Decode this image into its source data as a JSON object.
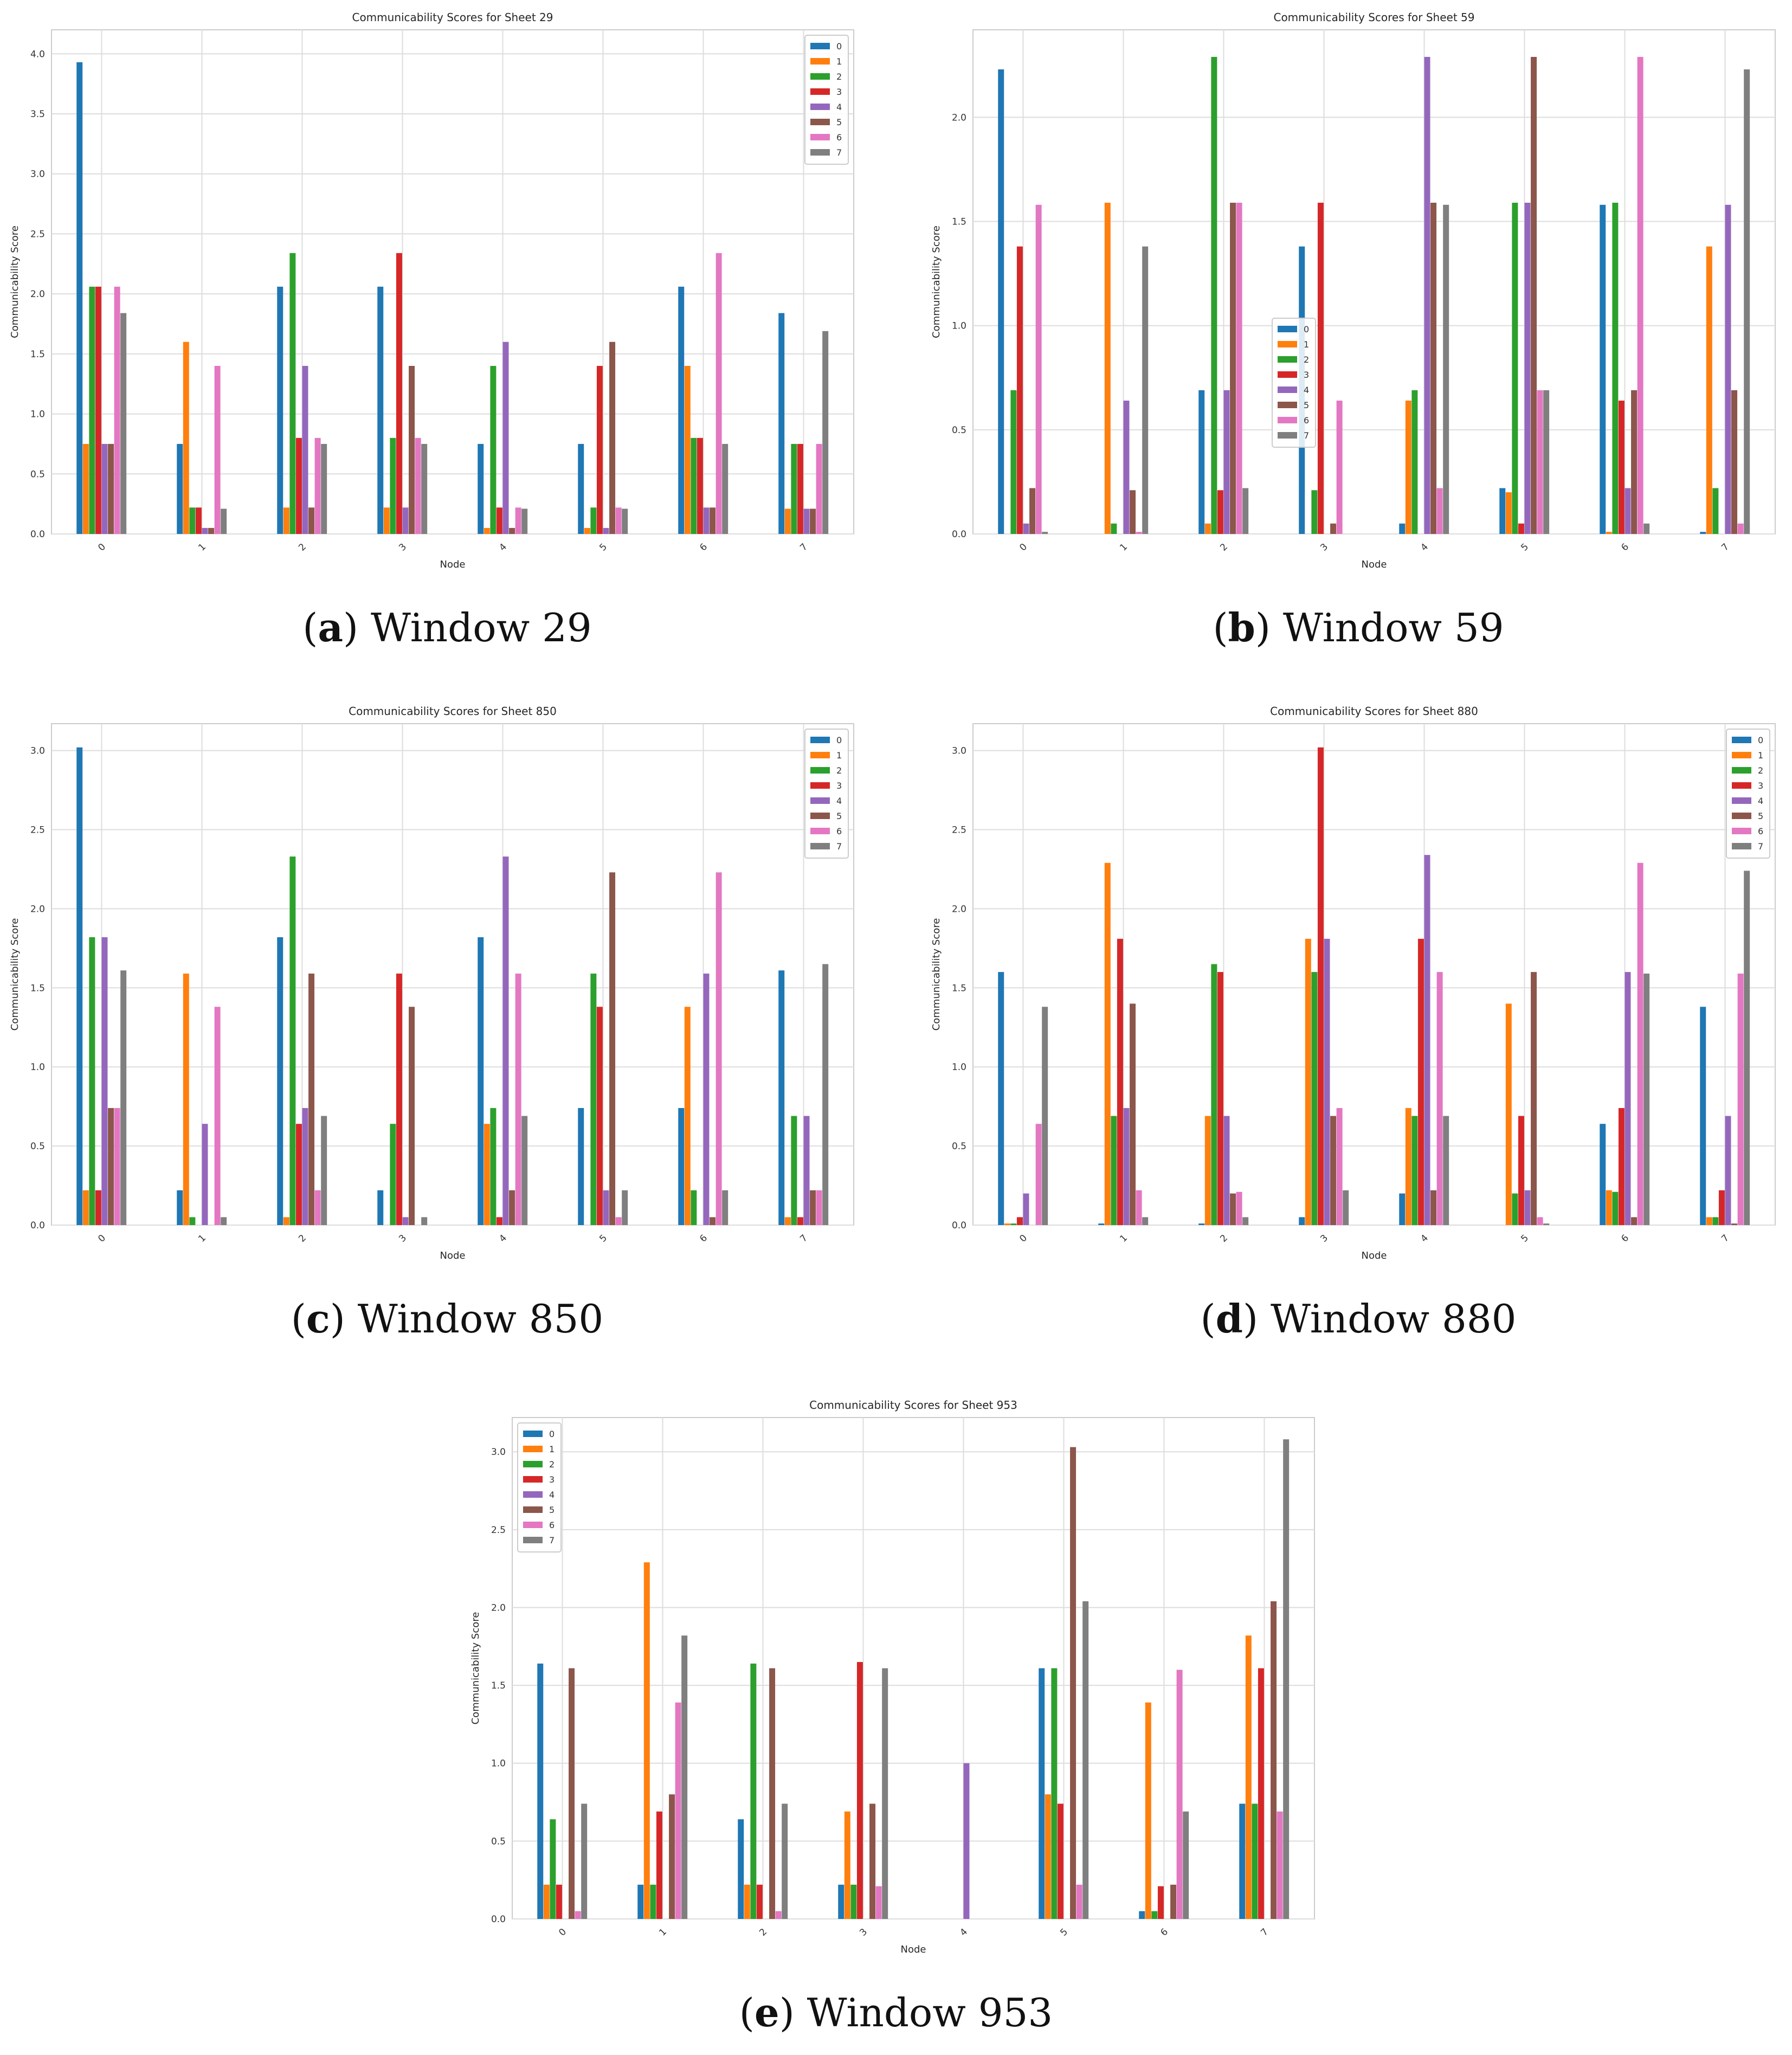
{
  "series_colors": [
    "#1f77b4",
    "#ff7f0e",
    "#2ca02c",
    "#d62728",
    "#9467bd",
    "#8c564b",
    "#e377c2",
    "#7f7f7f"
  ],
  "chart_data": [
    {
      "type": "bar",
      "title": "Communicability Scores for Sheet 29",
      "xlabel": "Node",
      "ylabel": "Communicability Score",
      "categories": [
        "0",
        "1",
        "2",
        "3",
        "4",
        "5",
        "6",
        "7"
      ],
      "ylim": [
        0,
        4.2
      ],
      "yticks": [
        "0.0",
        "0.5",
        "1.0",
        "1.5",
        "2.0",
        "2.5",
        "3.0",
        "3.5",
        "4.0"
      ],
      "legend_position": "top-right",
      "caption_letter": "a",
      "caption_text": " Window 29",
      "series": [
        {
          "name": "0",
          "values": [
            3.93,
            0.75,
            2.06,
            2.06,
            0.75,
            0.75,
            2.06,
            1.84
          ]
        },
        {
          "name": "1",
          "values": [
            0.75,
            1.6,
            0.22,
            0.22,
            0.05,
            0.05,
            1.4,
            0.21
          ]
        },
        {
          "name": "2",
          "values": [
            2.06,
            0.22,
            2.34,
            0.8,
            1.4,
            0.22,
            0.8,
            0.75
          ]
        },
        {
          "name": "3",
          "values": [
            2.06,
            0.22,
            0.8,
            2.34,
            0.22,
            1.4,
            0.8,
            0.75
          ]
        },
        {
          "name": "4",
          "values": [
            0.75,
            0.05,
            1.4,
            0.22,
            1.6,
            0.05,
            0.22,
            0.21
          ]
        },
        {
          "name": "5",
          "values": [
            0.75,
            0.05,
            0.22,
            1.4,
            0.05,
            1.6,
            0.22,
            0.21
          ]
        },
        {
          "name": "6",
          "values": [
            2.06,
            1.4,
            0.8,
            0.8,
            0.22,
            0.22,
            2.34,
            0.75
          ]
        },
        {
          "name": "7",
          "values": [
            1.84,
            0.21,
            0.75,
            0.75,
            0.21,
            0.21,
            0.75,
            1.69
          ]
        }
      ]
    },
    {
      "type": "bar",
      "title": "Communicability Scores for Sheet 59",
      "xlabel": "Node",
      "ylabel": "Communicability Score",
      "categories": [
        "0",
        "1",
        "2",
        "3",
        "4",
        "5",
        "6",
        "7"
      ],
      "ylim": [
        0,
        2.42
      ],
      "yticks": [
        "0.0",
        "0.5",
        "1.0",
        "1.5",
        "2.0"
      ],
      "legend_position": "center",
      "caption_letter": "b",
      "caption_text": " Window 59",
      "series": [
        {
          "name": "0",
          "values": [
            2.23,
            0.0,
            0.69,
            1.38,
            0.05,
            0.22,
            1.58,
            0.01
          ]
        },
        {
          "name": "1",
          "values": [
            0.0,
            1.59,
            0.05,
            0.0,
            0.64,
            0.2,
            0.01,
            1.38
          ]
        },
        {
          "name": "2",
          "values": [
            0.69,
            0.05,
            2.29,
            0.21,
            0.69,
            1.59,
            1.59,
            0.22
          ]
        },
        {
          "name": "3",
          "values": [
            1.38,
            0.0,
            0.21,
            1.59,
            0.0,
            0.05,
            0.64,
            0.0
          ]
        },
        {
          "name": "4",
          "values": [
            0.05,
            0.64,
            0.69,
            0.0,
            2.29,
            1.59,
            0.22,
            1.58
          ]
        },
        {
          "name": "5",
          "values": [
            0.22,
            0.21,
            1.59,
            0.05,
            1.59,
            2.29,
            0.69,
            0.69
          ]
        },
        {
          "name": "6",
          "values": [
            1.58,
            0.01,
            1.59,
            0.64,
            0.22,
            0.69,
            2.29,
            0.05
          ]
        },
        {
          "name": "7",
          "values": [
            0.01,
            1.38,
            0.22,
            0.0,
            1.58,
            0.69,
            0.05,
            2.23
          ]
        }
      ]
    },
    {
      "type": "bar",
      "title": "Communicability Scores for Sheet 850",
      "xlabel": "Node",
      "ylabel": "Communicability Score",
      "categories": [
        "0",
        "1",
        "2",
        "3",
        "4",
        "5",
        "6",
        "7"
      ],
      "ylim": [
        0,
        3.17
      ],
      "yticks": [
        "0.0",
        "0.5",
        "1.0",
        "1.5",
        "2.0",
        "2.5",
        "3.0"
      ],
      "legend_position": "top-right",
      "caption_letter": "c",
      "caption_text": " Window 850",
      "series": [
        {
          "name": "0",
          "values": [
            3.02,
            0.22,
            1.82,
            0.22,
            1.82,
            0.74,
            0.74,
            1.61
          ]
        },
        {
          "name": "1",
          "values": [
            0.22,
            1.59,
            0.05,
            0.0,
            0.64,
            0.0,
            1.38,
            0.05
          ]
        },
        {
          "name": "2",
          "values": [
            1.82,
            0.05,
            2.33,
            0.64,
            0.74,
            1.59,
            0.22,
            0.69
          ]
        },
        {
          "name": "3",
          "values": [
            0.22,
            0.0,
            0.64,
            1.59,
            0.05,
            1.38,
            0.0,
            0.05
          ]
        },
        {
          "name": "4",
          "values": [
            1.82,
            0.64,
            0.74,
            0.05,
            2.33,
            0.22,
            1.59,
            0.69
          ]
        },
        {
          "name": "5",
          "values": [
            0.74,
            0.0,
            1.59,
            1.38,
            0.22,
            2.23,
            0.05,
            0.22
          ]
        },
        {
          "name": "6",
          "values": [
            0.74,
            1.38,
            0.22,
            0.0,
            1.59,
            0.05,
            2.23,
            0.22
          ]
        },
        {
          "name": "7",
          "values": [
            1.61,
            0.05,
            0.69,
            0.05,
            0.69,
            0.22,
            0.22,
            1.65
          ]
        }
      ]
    },
    {
      "type": "bar",
      "title": "Communicability Scores for Sheet 880",
      "xlabel": "Node",
      "ylabel": "Communicability Score",
      "categories": [
        "0",
        "1",
        "2",
        "3",
        "4",
        "5",
        "6",
        "7"
      ],
      "ylim": [
        0,
        3.17
      ],
      "yticks": [
        "0.0",
        "0.5",
        "1.0",
        "1.5",
        "2.0",
        "2.5",
        "3.0"
      ],
      "legend_position": "top-right",
      "caption_letter": "d",
      "caption_text": " Window 880",
      "series": [
        {
          "name": "0",
          "values": [
            1.6,
            0.01,
            0.01,
            0.05,
            0.2,
            0.0,
            0.64,
            1.38
          ]
        },
        {
          "name": "1",
          "values": [
            0.01,
            2.29,
            0.69,
            1.81,
            0.74,
            1.4,
            0.22,
            0.05
          ]
        },
        {
          "name": "2",
          "values": [
            0.01,
            0.69,
            1.65,
            1.6,
            0.69,
            0.2,
            0.21,
            0.05
          ]
        },
        {
          "name": "3",
          "values": [
            0.05,
            1.81,
            1.6,
            3.02,
            1.81,
            0.69,
            0.74,
            0.22
          ]
        },
        {
          "name": "4",
          "values": [
            0.2,
            0.74,
            0.69,
            1.81,
            2.34,
            0.22,
            1.6,
            0.69
          ]
        },
        {
          "name": "5",
          "values": [
            0.0,
            1.4,
            0.2,
            0.69,
            0.22,
            1.6,
            0.05,
            0.01
          ]
        },
        {
          "name": "6",
          "values": [
            0.64,
            0.22,
            0.21,
            0.74,
            1.6,
            0.05,
            2.29,
            1.59
          ]
        },
        {
          "name": "7",
          "values": [
            1.38,
            0.05,
            0.05,
            0.22,
            0.69,
            0.01,
            1.59,
            2.24
          ]
        }
      ]
    },
    {
      "type": "bar",
      "title": "Communicability Scores for Sheet 953",
      "xlabel": "Node",
      "ylabel": "Communicability Score",
      "categories": [
        "0",
        "1",
        "2",
        "3",
        "4",
        "5",
        "6",
        "7"
      ],
      "ylim": [
        0,
        3.22
      ],
      "yticks": [
        "0.0",
        "0.5",
        "1.0",
        "1.5",
        "2.0",
        "2.5",
        "3.0"
      ],
      "legend_position": "top-left",
      "caption_letter": "e",
      "caption_text": " Window 953",
      "series": [
        {
          "name": "0",
          "values": [
            1.64,
            0.22,
            0.64,
            0.22,
            0.0,
            1.61,
            0.05,
            0.74
          ]
        },
        {
          "name": "1",
          "values": [
            0.22,
            2.29,
            0.22,
            0.69,
            0.0,
            0.8,
            1.39,
            1.82
          ]
        },
        {
          "name": "2",
          "values": [
            0.64,
            0.22,
            1.64,
            0.22,
            0.0,
            1.61,
            0.05,
            0.74
          ]
        },
        {
          "name": "3",
          "values": [
            0.22,
            0.69,
            0.22,
            1.65,
            0.0,
            0.74,
            0.21,
            1.61
          ]
        },
        {
          "name": "4",
          "values": [
            0.0,
            0.0,
            0.0,
            0.0,
            1.0,
            0.0,
            0.0,
            0.0
          ]
        },
        {
          "name": "5",
          "values": [
            1.61,
            0.8,
            1.61,
            0.74,
            0.0,
            3.03,
            0.22,
            2.04
          ]
        },
        {
          "name": "6",
          "values": [
            0.05,
            1.39,
            0.05,
            0.21,
            0.0,
            0.22,
            1.6,
            0.69
          ]
        },
        {
          "name": "7",
          "values": [
            0.74,
            1.82,
            0.74,
            1.61,
            0.0,
            2.04,
            0.69,
            3.08
          ]
        }
      ]
    }
  ]
}
